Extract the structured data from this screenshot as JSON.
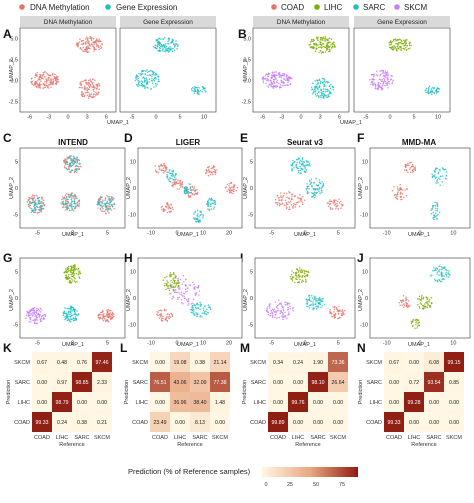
{
  "legends": {
    "modality": {
      "items": [
        {
          "label": "DNA Methylation",
          "color": "#e8756d"
        },
        {
          "label": "Gene Expression",
          "color": "#1fbfc4"
        }
      ]
    },
    "cancer": {
      "items": [
        {
          "label": "COAD",
          "color": "#e8756d"
        },
        {
          "label": "LIHC",
          "color": "#7cae00"
        },
        {
          "label": "SARC",
          "color": "#1fbfc4"
        },
        {
          "label": "SKCM",
          "color": "#c77cff"
        }
      ]
    }
  },
  "panels": {
    "A": "A",
    "B": "B",
    "C": "C",
    "D": "D",
    "E": "E",
    "F": "F",
    "G": "G",
    "H": "H",
    "I": "I",
    "J": "J",
    "K": "K",
    "L": "L",
    "M": "M",
    "N": "N"
  },
  "row1": {
    "strip_left": "DNA Methylation",
    "strip_right": "Gene Expression",
    "x_label": "UMAP_1",
    "y_label": "UMAP_2"
  },
  "method_titles": {
    "intend": "INTEND",
    "liger": "LIGER",
    "seurat": "Seurat v3",
    "mmdma": "MMD-MA"
  },
  "axis_labels": {
    "umap1": "UMAP_1",
    "umap2": "UMAP_2"
  },
  "confusion": {
    "x_label": "Reference",
    "y_label": "Prediction",
    "colorbar_title": "Prediction (% of Reference samples)",
    "colorbar_ticks": [
      "0",
      "25",
      "50",
      "75"
    ]
  },
  "chart_data": [
    {
      "panel": "K",
      "type": "heatmap",
      "x_categories": [
        "COAD",
        "LIHC",
        "SARC",
        "SKCM"
      ],
      "y_categories": [
        "COAD",
        "LIHC",
        "SARC",
        "SKCM"
      ],
      "values": [
        [
          "99.33",
          "0.24",
          "0.38",
          "0.21"
        ],
        [
          "0.00",
          "98.79",
          "0.00",
          "0.00"
        ],
        [
          "0.00",
          "0.97",
          "98.85",
          "2.33"
        ],
        [
          "0.67",
          "0.48",
          "0.76",
          "97.46"
        ]
      ],
      "xlabel": "Reference",
      "ylabel": "Prediction"
    },
    {
      "panel": "L",
      "type": "heatmap",
      "x_categories": [
        "COAD",
        "LIHC",
        "SARC",
        "SKCM"
      ],
      "y_categories": [
        "COAD",
        "LIHC",
        "SARC",
        "SKCM"
      ],
      "values": [
        [
          "23.49",
          "0.00",
          "8.13",
          "0.00"
        ],
        [
          "0.00",
          "36.96",
          "38.40",
          "1.48"
        ],
        [
          "76.51",
          "43.06",
          "32.09",
          "77.38"
        ],
        [
          "0.00",
          "19.08",
          "0.38",
          "21.14"
        ]
      ],
      "xlabel": "Reference",
      "ylabel": "Prediction"
    },
    {
      "panel": "M",
      "type": "heatmap",
      "x_categories": [
        "COAD",
        "LIHC",
        "SARC",
        "SKCM"
      ],
      "y_categories": [
        "COAD",
        "LIHC",
        "SARC",
        "SKCM"
      ],
      "values": [
        [
          "99.89",
          "0.00",
          "0.00",
          "0.00"
        ],
        [
          "0.00",
          "99.76",
          "0.00",
          "0.00"
        ],
        [
          "0.00",
          "0.00",
          "98.10",
          "26.64"
        ],
        [
          "0.34",
          "0.24",
          "1.90",
          "73.36"
        ]
      ],
      "xlabel": "Reference",
      "ylabel": "Prediction"
    },
    {
      "panel": "N",
      "type": "heatmap",
      "x_categories": [
        "COAD",
        "LIHC",
        "SARC",
        "SKCM"
      ],
      "y_categories": [
        "COAD",
        "LIHC",
        "SARC",
        "SKCM"
      ],
      "values": [
        [
          "99.33",
          "0.00",
          "0.00",
          "0.00"
        ],
        [
          "0.00",
          "99.28",
          "0.00",
          "0.00"
        ],
        [
          "0.00",
          "0.72",
          "93.54",
          "0.85"
        ],
        [
          "0.67",
          "0.00",
          "6.08",
          "99.15"
        ]
      ],
      "xlabel": "Reference",
      "ylabel": "Prediction"
    }
  ]
}
